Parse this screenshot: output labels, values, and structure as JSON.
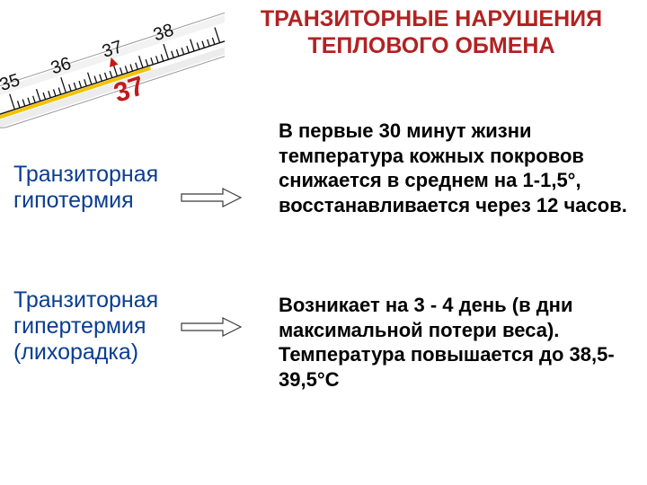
{
  "title": "ТРАНЗИТОРНЫЕ НАРУШЕНИЯ ТЕПЛОВОГО ОБМЕНА",
  "title_color": "#b22222",
  "term_color": "#0a3d91",
  "desc_color": "#000000",
  "background_color": "#ffffff",
  "title_fontsize": 25,
  "term_fontsize": 25,
  "desc_fontsize": 22,
  "terms": [
    {
      "label": "Транзиторная\n гипотермия"
    },
    {
      "label": "Транзиторная\n гипертермия\n (лихорадка)"
    }
  ],
  "descriptions": [
    "В первые 30 минут жизни температура кожных покровов снижается в среднем на 1-1,5°, восстанавливается через 12 часов.",
    "Возникает на 3 - 4 день (в дни максимальной потери веса). Температура повышается до 38,5-39,5°С"
  ],
  "arrow": {
    "stroke": "#3b3b3b",
    "fill": "#ffffff",
    "stroke_width": 1.2
  },
  "thermometer": {
    "body_fill": "#ffffff",
    "body_stroke": "#999999",
    "tick_color": "#111111",
    "mercury_color": "#f2c200",
    "red_marker_color": "#c21a1a",
    "scale_labels": [
      "35",
      "36",
      "37",
      "38"
    ],
    "red_label": "37",
    "angle_deg": -18
  }
}
